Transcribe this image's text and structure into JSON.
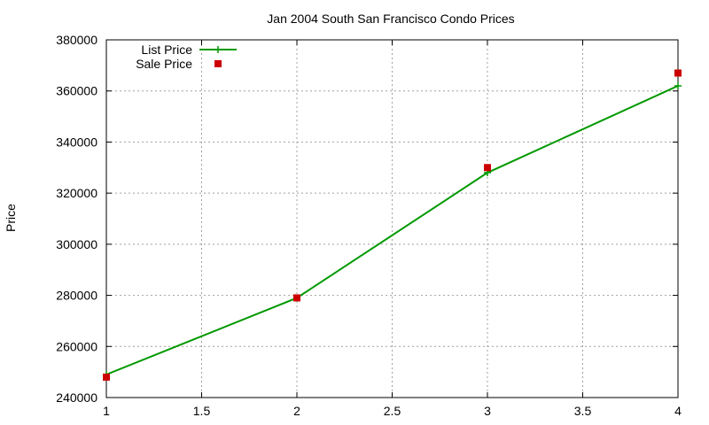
{
  "chart_data": {
    "type": "line",
    "title": "Jan 2004 South San Francisco Condo Prices",
    "xlabel": "",
    "ylabel": "Price",
    "xlim": [
      1,
      4
    ],
    "ylim": [
      240000,
      380000
    ],
    "xticks": [
      1,
      1.5,
      2,
      2.5,
      3,
      3.5,
      4
    ],
    "yticks": [
      240000,
      260000,
      280000,
      300000,
      320000,
      340000,
      360000,
      380000
    ],
    "grid": true,
    "legend": "top-left",
    "series": [
      {
        "name": "List Price",
        "style": "lines+points",
        "marker": "plus",
        "color": "#009900",
        "x": [
          1,
          2,
          3,
          4
        ],
        "y": [
          249000,
          279000,
          328000,
          362000
        ]
      },
      {
        "name": "Sale Price",
        "style": "points",
        "marker": "square",
        "color": "#cc0000",
        "x": [
          1,
          2,
          3,
          4
        ],
        "y": [
          248000,
          279000,
          330000,
          367000
        ]
      }
    ]
  }
}
